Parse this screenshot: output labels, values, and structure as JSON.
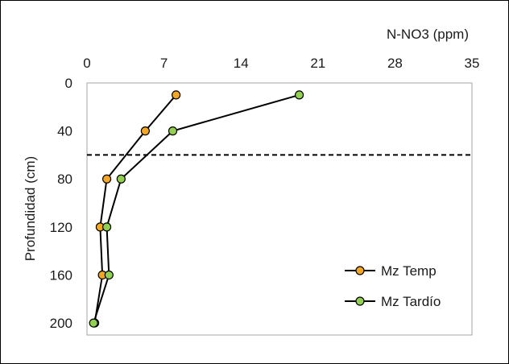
{
  "chart_data": {
    "type": "line",
    "title": "",
    "xlabel": "N-NO3 (ppm)",
    "ylabel": "Profundidad (cm)",
    "x_axis_position": "top",
    "y_axis_inverted": true,
    "xlim": [
      0,
      35
    ],
    "ylim": [
      0,
      210
    ],
    "x_ticks": [
      "0",
      "7",
      "14",
      "21",
      "28",
      "35"
    ],
    "y_ticks": [
      "0",
      "40",
      "80",
      "120",
      "160",
      "200"
    ],
    "x_tick_values": [
      0,
      7,
      14,
      21,
      28,
      35
    ],
    "y_tick_values": [
      0,
      40,
      80,
      120,
      160,
      200
    ],
    "grid": false,
    "legend_position": "bottom-right",
    "reference_line": {
      "y": 60,
      "style": "dashed",
      "color": "#000000"
    },
    "series": [
      {
        "name": "Mz Temp",
        "color": "#f5a623",
        "points": [
          {
            "x": 8.1,
            "y": 10
          },
          {
            "x": 5.3,
            "y": 40
          },
          {
            "x": 1.8,
            "y": 80
          },
          {
            "x": 1.2,
            "y": 120
          },
          {
            "x": 1.4,
            "y": 160
          },
          {
            "x": 0.7,
            "y": 200
          }
        ]
      },
      {
        "name": "Mz Tardío",
        "color": "#92d050",
        "points": [
          {
            "x": 19.3,
            "y": 10
          },
          {
            "x": 7.8,
            "y": 40
          },
          {
            "x": 3.1,
            "y": 80
          },
          {
            "x": 1.8,
            "y": 120
          },
          {
            "x": 2.0,
            "y": 160
          },
          {
            "x": 0.6,
            "y": 200
          }
        ]
      }
    ]
  }
}
